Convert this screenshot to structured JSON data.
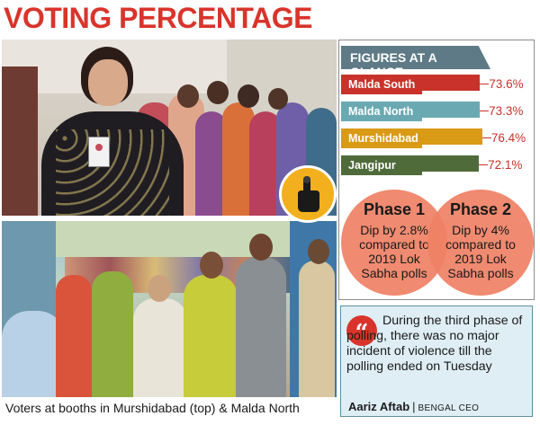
{
  "title": "VOTING PERCENTAGE",
  "photos": {
    "top_alt": "Woman voter holding ID card with queue behind",
    "bottom_alt": "Voters queued at booth"
  },
  "caption": "Voters at booths in Murshidabad (top) & Malda North",
  "figures": {
    "heading": "FIGURES AT A GLANCE",
    "bars": [
      {
        "label": "Malda South",
        "value": "73.6%",
        "pct": 73.6,
        "color": "#c8322a"
      },
      {
        "label": "Malda North",
        "value": "73.3%",
        "pct": 73.3,
        "color": "#6aa9b2"
      },
      {
        "label": "Murshidabad",
        "value": "76.4%",
        "pct": 76.4,
        "color": "#d99a16"
      },
      {
        "label": "Jangipur",
        "value": "72.1%",
        "pct": 72.1,
        "color": "#4f6b3a"
      }
    ],
    "phases": [
      {
        "title": "Phase 1",
        "text": "Dip by 2.8% compared to 2019 Lok Sabha polls"
      },
      {
        "title": "Phase 2",
        "text": "Dip by 4% compared to 2019 Lok Sabha polls"
      }
    ]
  },
  "quote": {
    "text": "During the third phase of polling, there was no major incident of violence till the polling ended on Tuesday",
    "author": "Aariz Aftab",
    "role": "BENGAL CEO"
  }
}
